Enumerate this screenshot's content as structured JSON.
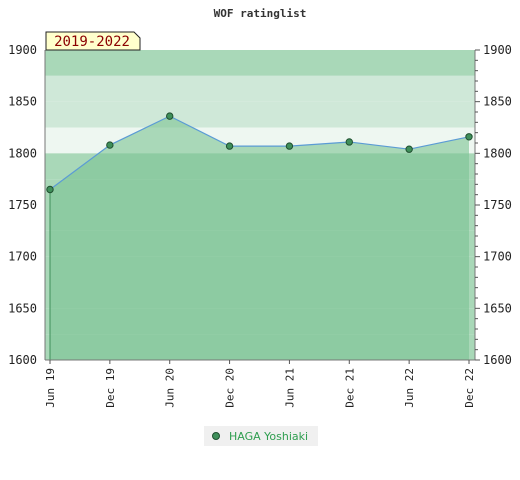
{
  "chart_data": {
    "type": "area",
    "title": "WOF ratinglist",
    "period_badge": "2019-2022",
    "xlabel": "",
    "ylabel": "",
    "categories": [
      "Jun 19",
      "Dec 19",
      "Jun 20",
      "Dec 20",
      "Jun 21",
      "Dec 21",
      "Jun 22",
      "Dec 22"
    ],
    "series": [
      {
        "name": "HAGA Yoshiaki",
        "values": [
          1765,
          1808,
          1836,
          1807,
          1807,
          1811,
          1804,
          1816
        ]
      }
    ],
    "ylim": [
      1600,
      1900
    ],
    "yticks": [
      1600,
      1650,
      1700,
      1750,
      1800,
      1850,
      1900
    ],
    "y_axis_both_sides": true,
    "grid": "banded",
    "legend_position": "bottom-center",
    "colors": {
      "band_light": "#cfe8d8",
      "band_mid": "#a9d8b8",
      "band_white": "#eef7f1",
      "fill": "#7cc393",
      "line": "#5b9bd5",
      "marker": "#3f8f5a",
      "badge_bg": "#ffffcc",
      "legend_text": "#2e9e4f"
    }
  }
}
